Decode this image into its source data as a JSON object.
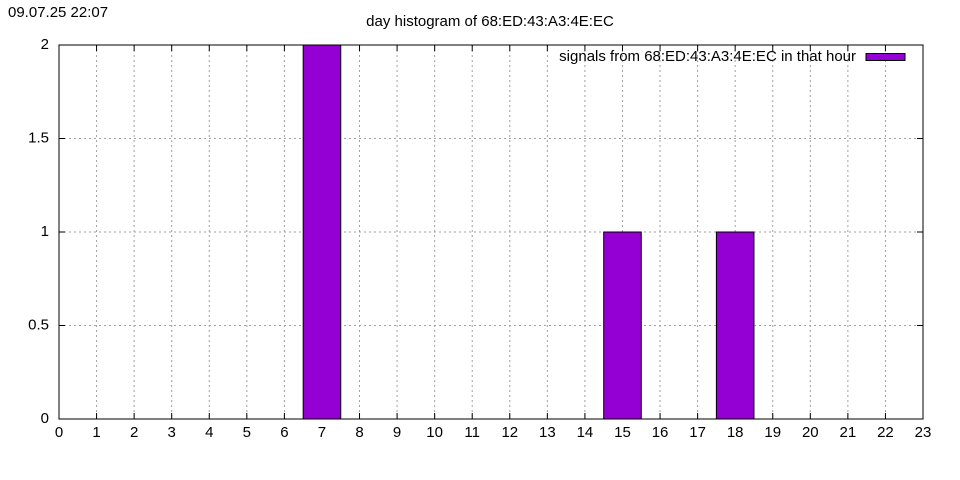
{
  "chart_data": {
    "type": "bar",
    "timestamp": "09.07.25 22:07",
    "title": "day histogram of 68:ED:43:A3:4E:EC",
    "x": [
      0,
      1,
      2,
      3,
      4,
      5,
      6,
      7,
      8,
      9,
      10,
      11,
      12,
      13,
      14,
      15,
      16,
      17,
      18,
      19,
      20,
      21,
      22,
      23
    ],
    "series": [
      {
        "name": "signals from 68:ED:43:A3:4E:EC in that hour",
        "color": "#9400d3",
        "values": [
          0,
          0,
          0,
          0,
          0,
          0,
          0,
          2,
          0,
          0,
          0,
          0,
          0,
          0,
          0,
          1,
          0,
          0,
          1,
          0,
          0,
          0,
          0,
          0
        ]
      }
    ],
    "xlim": [
      0,
      23
    ],
    "xticks": [
      0,
      1,
      2,
      3,
      4,
      5,
      6,
      7,
      8,
      9,
      10,
      11,
      12,
      13,
      14,
      15,
      16,
      17,
      18,
      19,
      20,
      21,
      22,
      23
    ],
    "ylim": [
      0,
      2
    ],
    "yticks": [
      0,
      0.5,
      1,
      1.5,
      2
    ],
    "grid": true,
    "legend": "top-right"
  }
}
